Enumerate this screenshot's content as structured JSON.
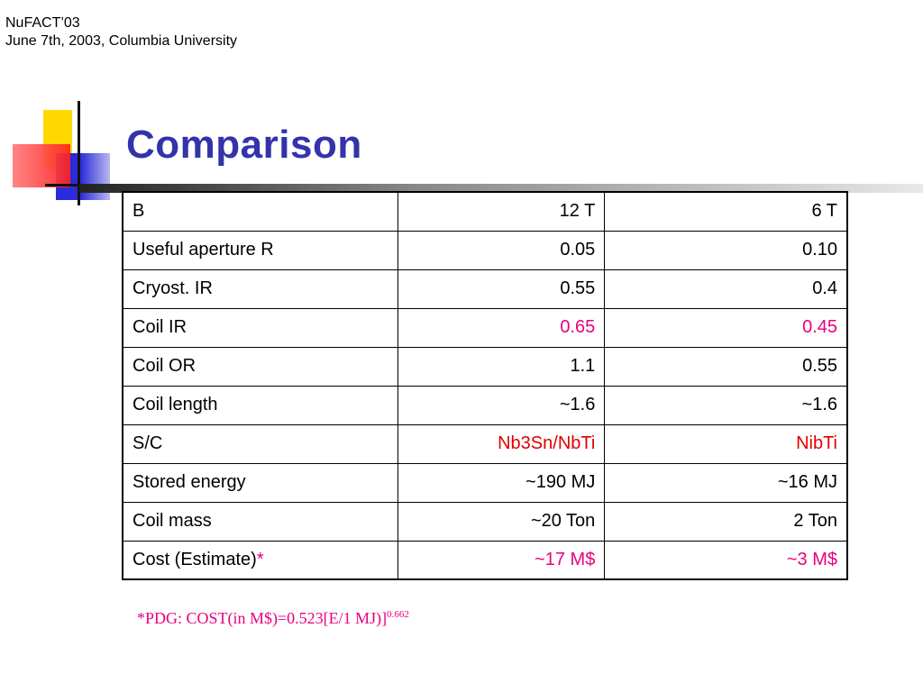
{
  "header": {
    "line1": "NuFACT’03",
    "line2": "June 7th, 2003, Columbia University"
  },
  "title": "Comparison",
  "colors": {
    "title": "#3333aa",
    "magenta": "#e8007f",
    "red": "#e00000"
  },
  "table": {
    "rows": [
      {
        "label": "B",
        "v1": "12 T",
        "v2": "6 T",
        "style": ""
      },
      {
        "label": "Useful aperture R",
        "v1": "0.05",
        "v2": "0.10",
        "style": ""
      },
      {
        "label": "Cryost. IR",
        "v1": "0.55",
        "v2": "0.4",
        "style": ""
      },
      {
        "label": "Coil IR",
        "v1": "0.65",
        "v2": "0.45",
        "style": "magenta"
      },
      {
        "label": "Coil OR",
        "v1": "1.1",
        "v2": "0.55",
        "style": ""
      },
      {
        "label": "Coil length",
        "v1": "~1.6",
        "v2": "~1.6",
        "style": ""
      },
      {
        "label": "S/C",
        "v1": "Nb3Sn/NbTi",
        "v2": "NibTi",
        "style": "red"
      },
      {
        "label": "Stored energy",
        "v1": "~190 MJ",
        "v2": "~16 MJ",
        "style": ""
      },
      {
        "label": "Coil mass",
        "v1": "~20 Ton",
        "v2": "2 Ton",
        "style": ""
      },
      {
        "label": "Cost (Estimate)",
        "label_suffix": "*",
        "v1": "~17 M$",
        "v2": "~3 M$",
        "style": "magenta"
      }
    ]
  },
  "footnote": {
    "text": "*PDG: COST(in M$)=0.523[E/1 MJ)]",
    "exponent": "0.662"
  }
}
